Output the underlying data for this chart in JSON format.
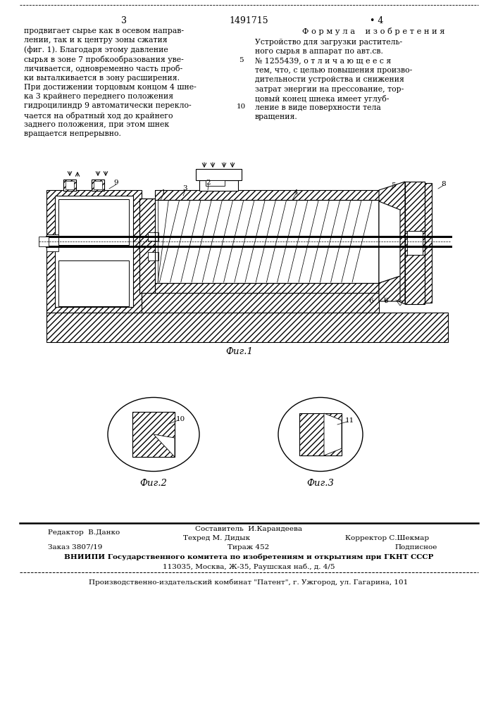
{
  "bg_color": "#ffffff",
  "header_page_left": "3",
  "header_patent": "1491715",
  "header_page_right": "• 4",
  "header_formula": "Ф о р м у л а    и з о б р е т е н и я",
  "left_col": [
    "продвигает сырье как в осевом направ-",
    "лении, так и к центру зоны сжатия",
    "(фиг. 1). Благодаря этому давление",
    "сырья в зоне 7 пробкообразования уве-",
    "личивается, одновременно часть проб-",
    "ки выталкивается в зону расширения.",
    "При достижении торцовым концом 4 шне-",
    "ка 3 крайнего переднего положения",
    "гидроцилиндр 9 автоматически перекло-",
    "чается на обратный ход до крайнего",
    "заднего положения, при этом шнек",
    "вращается непрерывно."
  ],
  "right_col": [
    "Устройство для загрузки раститель-",
    "ного сырья в аппарат по авт.св.",
    "№ 1255439, о т л и ч а ю щ е е с я",
    "тем, что, с целью повышения произво-",
    "дительности устройства и снижения",
    "затрат энергии на прессование, тор-",
    "цовый конец шнека имеет углуб-",
    "ление в виде поверхности тела",
    "вращения."
  ],
  "fig1_caption": "Фиг.1",
  "fig2_caption": "Фиг.2",
  "fig3_caption": "Фиг.3",
  "editor": "Редактор  В.Данко",
  "compiler": "Составитель  И.Карандеева",
  "techred": "Техред М. Дидык",
  "corrector": "Корректор С.Шекмар",
  "order": "Заказ 3807/19",
  "tirazh": "Тираж 452",
  "podpisnoe": "Подписное",
  "vniipи": "ВНИИПИ Государственного комитета по изобретениям и открытиям при ГКНТ СССР",
  "address": "113035, Москва, Ж-35, Раушская наб., д. 4/5",
  "patent_publisher": "Производственно-издательский комбинат \"Патент\", г. Ужгород, ул. Гагарина, 101",
  "line_nums": [
    "5",
    "10"
  ]
}
